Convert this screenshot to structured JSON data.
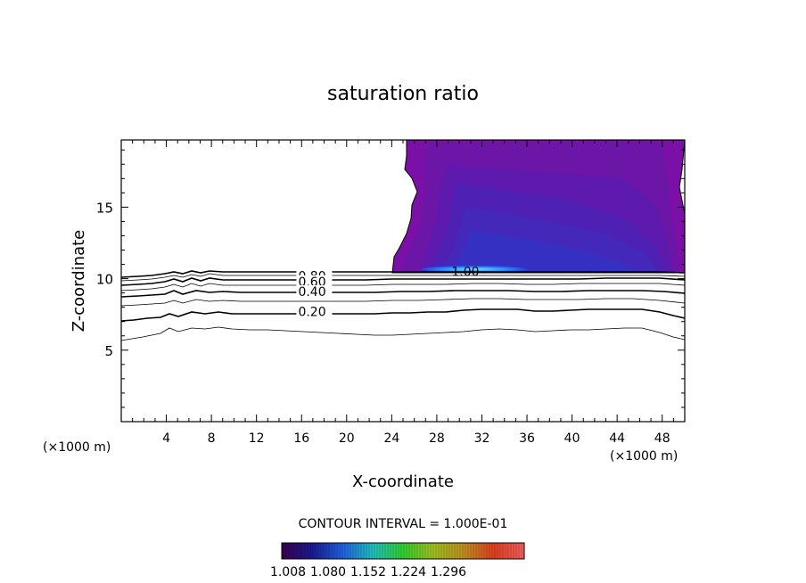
{
  "chart_data": {
    "type": "contour",
    "title": "saturation ratio",
    "xlabel": "X-coordinate",
    "ylabel": "Z-coordinate",
    "x_unit_left": "(×1000 m)",
    "x_unit_right": "(×1000 m)",
    "xlim": [
      0,
      50
    ],
    "ylim": [
      0,
      19.7
    ],
    "x_ticks": [
      4,
      8,
      12,
      16,
      20,
      24,
      28,
      32,
      36,
      40,
      44,
      48
    ],
    "x_tick_labels": [
      "4",
      "8",
      "12",
      "16",
      "20",
      "24",
      "28",
      "32",
      "36",
      "40",
      "44",
      "48"
    ],
    "y_ticks": [
      5,
      10,
      15
    ],
    "y_tick_labels": [
      "5",
      "10",
      "15"
    ],
    "contour_interval_text": "CONTOUR INTERVAL = 1.000E-01",
    "contour_labels": [
      {
        "text": "0.80",
        "x": 15.7,
        "z": 10.2
      },
      {
        "text": "0.60",
        "x": 15.7,
        "z": 9.8
      },
      {
        "text": "0.40",
        "x": 15.7,
        "z": 9.1
      },
      {
        "text": "0.20",
        "x": 15.7,
        "z": 7.7
      },
      {
        "text": "1.00",
        "x": 29.3,
        "z": 10.5
      }
    ],
    "colorbar": {
      "tick_labels": [
        "1.008",
        "1.080",
        "1.152",
        "1.224",
        "1.296"
      ],
      "range": [
        1.0,
        1.33
      ],
      "colors": [
        "#3a0050",
        "#1a1a90",
        "#2060e0",
        "#20c0c0",
        "#30d030",
        "#a0c020",
        "#c09020",
        "#e04020",
        "#f06060"
      ]
    },
    "shaded_region": {
      "description_values": "supersaturated cloud region",
      "x_range": [
        24.3,
        50
      ],
      "z_range": [
        10.6,
        19.7
      ],
      "base_color": "#7a10a6",
      "inner_colors": [
        "#6a1aaa",
        "#5520b0",
        "#4428b8",
        "#3a30c0"
      ],
      "core_color": "#2aa0ff"
    }
  }
}
